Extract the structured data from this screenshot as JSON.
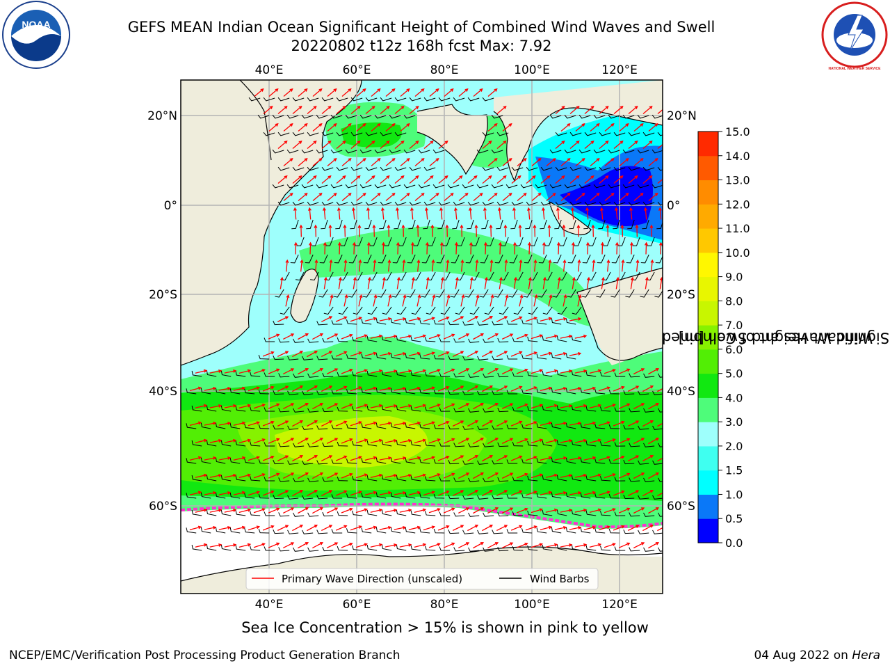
{
  "title": {
    "line1": "GEFS MEAN Indian Ocean Significant Height of Combined Wind Waves and Swell",
    "line2": "20220802 t12z 168h fcst   Max: 7.92"
  },
  "map": {
    "lon_ticks": [
      "40°E",
      "60°E",
      "80°E",
      "100°E",
      "120°E"
    ],
    "lat_ticks": [
      "20°N",
      "0°",
      "20°S",
      "40°S",
      "60°S"
    ],
    "colors": {
      "land": "#efeddc",
      "ice": "#ffffff",
      "grid": "#b4b4b4",
      "wave_arrow": "#ff0000",
      "wind_barb": "#000000"
    },
    "legend": {
      "wave_direction": "Primary Wave Direction (unscaled)",
      "wind_barbs": "Wind Barbs"
    }
  },
  "colorbar": {
    "title_line1": "Significant Height of Combined",
    "title_line2": "Wind Waves and Swell [m]",
    "levels": [
      "0.0",
      "0.5",
      "1.0",
      "1.5",
      "2.0",
      "3.0",
      "4.0",
      "5.0",
      "6.0",
      "7.0",
      "8.0",
      "9.0",
      "10.0",
      "11.0",
      "12.0",
      "13.0",
      "14.0",
      "15.0"
    ],
    "colors": [
      "#0000ff",
      "#0a78f8",
      "#00ffff",
      "#3ffff0",
      "#9efffc",
      "#4efc7a",
      "#11e811",
      "#52ee05",
      "#86f200",
      "#c8f600",
      "#e8f600",
      "#fff700",
      "#ffc800",
      "#ffaa00",
      "#ff8c00",
      "#ff5a00",
      "#ff2a00"
    ]
  },
  "sea_ice_note": "Sea Ice Concentration > 15% is shown in pink to yellow",
  "footer": {
    "left": "NCEP/EMC/Verification Post Processing Product Generation Branch",
    "date": "04 Aug 2022 on ",
    "host": "Hera"
  },
  "logos": {
    "noaa_text": "NOAA",
    "nws_text": "NATIONAL WEATHER SERVICE"
  }
}
